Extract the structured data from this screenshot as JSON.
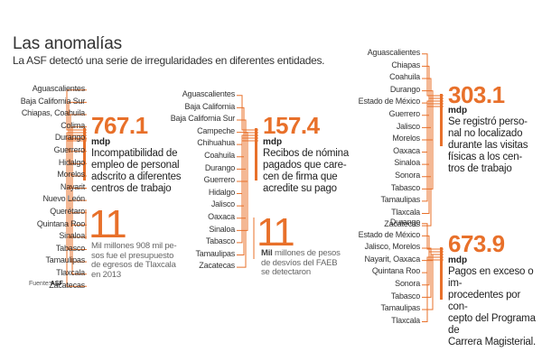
{
  "header": {
    "title": "Las anomalías",
    "subtitle": "La ASF detectó una serie de irregularidades en diferentes entidades."
  },
  "colors": {
    "accent": "#e8702a",
    "text": "#222222",
    "muted": "#666666"
  },
  "panels": {
    "p1": {
      "states": [
        "Aguascalientes",
        "Baja California Sur",
        "Chiapas, Coahuila",
        "Colima",
        "Durango",
        "Guerrero",
        "Hidalgo",
        "Morelos",
        "Nayarit",
        "Nuevo León",
        "Querétaro",
        "Quintana Roo",
        "Sinaloa",
        "Tabasco",
        "Tamaulipas",
        "Tlaxcala",
        "Zacatecas"
      ],
      "value": "767.1",
      "unit": "mdp",
      "description": [
        "Incompatibilidad de",
        "empleo de personal",
        "adscrito a diferentes",
        "centros de trabajo"
      ]
    },
    "p2": {
      "states": [
        "Aguascalientes",
        "Baja California",
        "Baja California Sur",
        "Campeche",
        "Chihuahua",
        "Coahuila",
        "Durango",
        "Guerrero",
        "Hidalgo",
        "Jalisco",
        "Oaxaca",
        "Sinaloa",
        "Tabasco",
        "Tamaulipas",
        "Zacatecas"
      ],
      "value": "157.4",
      "unit": "mdp",
      "description": [
        "Recibos de nómina",
        "pagados que care-",
        "cen de firma que",
        "acredite su pago"
      ]
    },
    "p3": {
      "states": [
        "Aguascalientes",
        "Chiapas",
        "Coahuila",
        "Durango",
        "Estado de México",
        "Guerrero",
        "Jalisco",
        "Morelos",
        "Oaxaca",
        "Sinaloa",
        "Sonora",
        "Tabasco",
        "Tamaulipas",
        "Tlaxcala",
        "Zacatecas"
      ],
      "value": "303.1",
      "unit": "mdp",
      "description": [
        "Se registró perso-",
        "nal no localizado",
        "durante las visitas",
        "físicas a los cen-",
        "tros de trabajo"
      ]
    },
    "p4": {
      "states": [
        "Durango",
        "Estado de México",
        "Jalisco, Morelos",
        "Nayarit, Oaxaca",
        "Quintana Roo",
        "Sonora",
        "Tabasco",
        "Tamaulipas",
        "Tlaxcala"
      ],
      "value": "673.9",
      "unit": "mdp",
      "description": [
        "Pagos en exceso o im-",
        "procedentes por con-",
        "cepto del Programa de",
        "Carrera Magisterial."
      ]
    }
  },
  "notes": {
    "left": {
      "number": "11",
      "lines": [
        "Mil millones 908 mil pe-",
        "sos fue el presupuesto",
        "de egresos de Tlaxcala",
        "en 2013"
      ]
    },
    "middle": {
      "number": "11",
      "bold": "Mil",
      "lines": [
        " millones de pesos",
        "de desvíos del FAEB",
        "se detectaron"
      ]
    }
  },
  "source": {
    "label": "Fuente:",
    "value": "ASF"
  }
}
